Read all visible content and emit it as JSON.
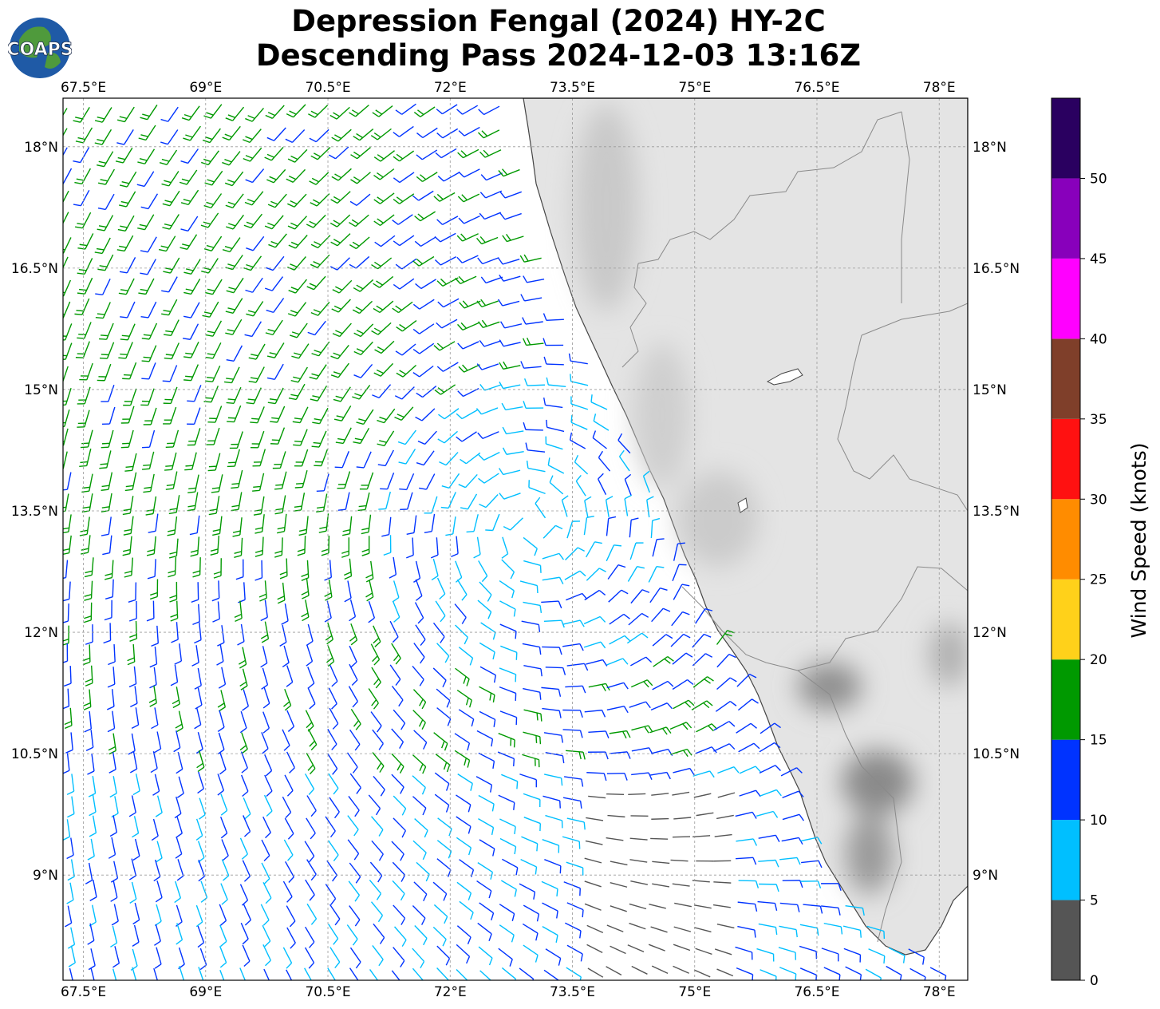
{
  "title_line1": "Depression Fengal (2024) HY-2C",
  "title_line2": "Descending Pass 2024-12-03 13:16Z",
  "logo_text": "COAPS",
  "lon_labels": [
    "67.5°E",
    "69°E",
    "70.5°E",
    "72°E",
    "73.5°E",
    "75°E",
    "76.5°E",
    "78°E"
  ],
  "lat_labels": [
    "18°N",
    "16.5°N",
    "15°N",
    "13.5°N",
    "12°N",
    "10.5°N",
    "9°N"
  ],
  "map_extent": {
    "lon_min": 67.25,
    "lon_max": 78.35,
    "lat_min": 7.7,
    "lat_max": 18.6
  },
  "colorbar": {
    "label": "Wind Speed (knots)",
    "ticks": [
      "0",
      "5",
      "10",
      "15",
      "20",
      "25",
      "30",
      "35",
      "40",
      "45",
      "50"
    ],
    "bins": [
      {
        "from": 0,
        "to": 5,
        "color": "#555555"
      },
      {
        "from": 5,
        "to": 10,
        "color": "#00bfff"
      },
      {
        "from": 10,
        "to": 15,
        "color": "#0033ff"
      },
      {
        "from": 15,
        "to": 20,
        "color": "#009900"
      },
      {
        "from": 20,
        "to": 25,
        "color": "#ffd11a"
      },
      {
        "from": 25,
        "to": 30,
        "color": "#ff8c00"
      },
      {
        "from": 30,
        "to": 35,
        "color": "#ff1111"
      },
      {
        "from": 35,
        "to": 40,
        "color": "#7f3f2a"
      },
      {
        "from": 40,
        "to": 45,
        "color": "#ff00ff"
      },
      {
        "from": 45,
        "to": 50,
        "color": "#8800bb"
      },
      {
        "from": 50,
        "to": 55,
        "color": "#2a0060"
      }
    ]
  },
  "circulation_center": {
    "lon": 73.0,
    "lat": 13.3
  }
}
